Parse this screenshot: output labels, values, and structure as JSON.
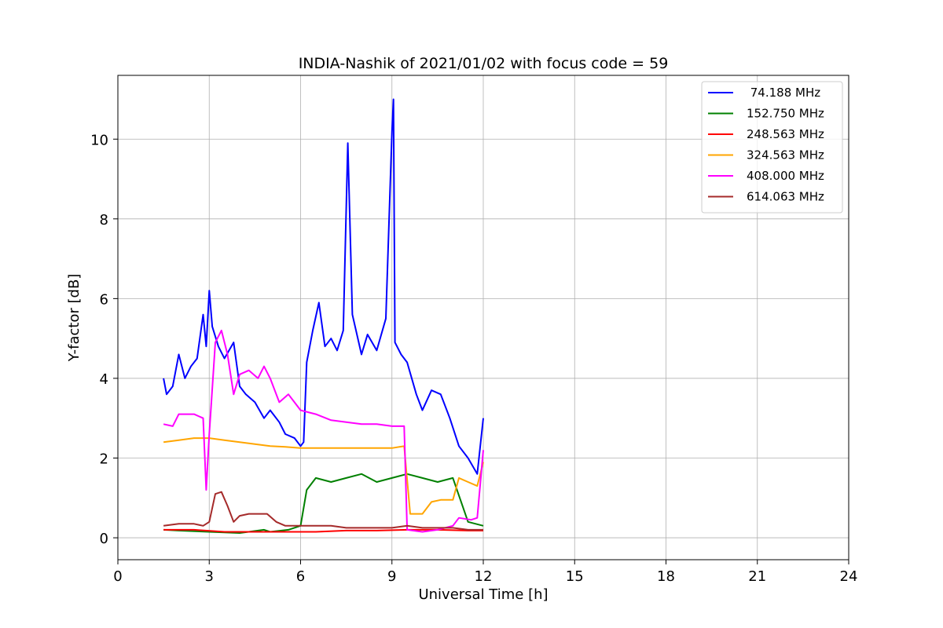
{
  "chart_data": {
    "type": "line",
    "title": "INDIA-Nashik of 2021/01/02 with focus code = 59",
    "xlabel": "Universal Time [h]",
    "ylabel": "Y-factor [dB]",
    "xlim": [
      0,
      24
    ],
    "ylim": [
      -0.55,
      11.6
    ],
    "x_ticks": [
      0,
      3,
      6,
      9,
      12,
      15,
      18,
      21,
      24
    ],
    "y_ticks": [
      0,
      2,
      4,
      6,
      8,
      10
    ],
    "grid": true,
    "legend_position": "top-right",
    "series": [
      {
        "name": " 74.188 MHz",
        "color": "#0000ff",
        "x": [
          1.5,
          1.6,
          1.8,
          2.0,
          2.2,
          2.4,
          2.6,
          2.8,
          2.9,
          3.0,
          3.1,
          3.3,
          3.5,
          3.8,
          4.0,
          4.2,
          4.5,
          4.8,
          5.0,
          5.3,
          5.5,
          5.8,
          6.0,
          6.1,
          6.2,
          6.4,
          6.6,
          6.8,
          7.0,
          7.2,
          7.4,
          7.55,
          7.7,
          8.0,
          8.2,
          8.5,
          8.8,
          9.0,
          9.05,
          9.1,
          9.3,
          9.5,
          9.8,
          10.0,
          10.3,
          10.6,
          10.9,
          11.2,
          11.5,
          11.8,
          12.0
        ],
        "y": [
          4.0,
          3.6,
          3.8,
          4.6,
          4.0,
          4.3,
          4.5,
          5.6,
          4.8,
          6.2,
          5.3,
          4.8,
          4.5,
          4.9,
          3.8,
          3.6,
          3.4,
          3.0,
          3.2,
          2.9,
          2.6,
          2.5,
          2.3,
          2.4,
          4.4,
          5.2,
          5.9,
          4.8,
          5.0,
          4.7,
          5.2,
          9.9,
          5.6,
          4.6,
          5.1,
          4.7,
          5.5,
          10.2,
          11.0,
          4.9,
          4.6,
          4.4,
          3.6,
          3.2,
          3.7,
          3.6,
          3.0,
          2.3,
          2.0,
          1.6,
          3.0
        ]
      },
      {
        "name": "152.750 MHz",
        "color": "#008000",
        "x": [
          1.5,
          2.0,
          3.0,
          4.0,
          4.8,
          5.0,
          5.6,
          6.0,
          6.2,
          6.5,
          7.0,
          7.5,
          8.0,
          8.5,
          9.0,
          9.5,
          10.0,
          10.5,
          11.0,
          11.5,
          12.0
        ],
        "y": [
          0.2,
          0.18,
          0.15,
          0.12,
          0.2,
          0.15,
          0.2,
          0.3,
          1.2,
          1.5,
          1.4,
          1.5,
          1.6,
          1.4,
          1.5,
          1.6,
          1.5,
          1.4,
          1.5,
          0.4,
          0.3
        ]
      },
      {
        "name": "248.563 MHz",
        "color": "#ff0000",
        "x": [
          1.5,
          2.5,
          3.5,
          4.5,
          5.5,
          6.5,
          7.5,
          8.5,
          9.5,
          10.5,
          11.5,
          12.0
        ],
        "y": [
          0.2,
          0.2,
          0.15,
          0.15,
          0.15,
          0.15,
          0.18,
          0.18,
          0.2,
          0.2,
          0.18,
          0.18
        ]
      },
      {
        "name": "324.563 MHz",
        "color": "#ffa500",
        "x": [
          1.5,
          2.0,
          2.5,
          3.0,
          3.5,
          4.0,
          4.5,
          5.0,
          5.5,
          6.0,
          6.5,
          7.0,
          7.5,
          8.0,
          8.5,
          9.0,
          9.4,
          9.6,
          10.0,
          10.3,
          10.6,
          11.0,
          11.2,
          11.5,
          11.8,
          12.0
        ],
        "y": [
          2.4,
          2.45,
          2.5,
          2.5,
          2.45,
          2.4,
          2.35,
          2.3,
          2.28,
          2.25,
          2.25,
          2.25,
          2.25,
          2.25,
          2.25,
          2.25,
          2.3,
          0.6,
          0.6,
          0.9,
          0.95,
          0.95,
          1.5,
          1.4,
          1.3,
          1.9
        ]
      },
      {
        "name": "408.000 MHz",
        "color": "#ff00ff",
        "x": [
          1.5,
          1.8,
          2.0,
          2.5,
          2.8,
          2.9,
          3.0,
          3.2,
          3.4,
          3.6,
          3.8,
          4.0,
          4.3,
          4.6,
          4.8,
          5.0,
          5.3,
          5.6,
          6.0,
          6.5,
          7.0,
          7.5,
          8.0,
          8.5,
          9.0,
          9.4,
          9.5,
          10.0,
          10.5,
          11.0,
          11.2,
          11.6,
          11.8,
          12.0
        ],
        "y": [
          2.85,
          2.8,
          3.1,
          3.1,
          3.0,
          1.2,
          2.6,
          4.9,
          5.2,
          4.6,
          3.6,
          4.1,
          4.2,
          4.0,
          4.3,
          4.0,
          3.4,
          3.6,
          3.2,
          3.1,
          2.95,
          2.9,
          2.85,
          2.85,
          2.8,
          2.8,
          0.2,
          0.15,
          0.2,
          0.3,
          0.5,
          0.45,
          0.5,
          2.2
        ]
      },
      {
        "name": "614.063 MHz",
        "color": "#a52a2a",
        "x": [
          1.5,
          2.0,
          2.5,
          2.8,
          3.0,
          3.2,
          3.4,
          3.6,
          3.8,
          4.0,
          4.3,
          4.6,
          4.9,
          5.2,
          5.5,
          6.0,
          6.5,
          7.0,
          7.5,
          8.0,
          8.5,
          9.0,
          9.5,
          10.0,
          10.5,
          11.0,
          11.5,
          12.0
        ],
        "y": [
          0.3,
          0.35,
          0.35,
          0.3,
          0.4,
          1.1,
          1.15,
          0.8,
          0.4,
          0.55,
          0.6,
          0.6,
          0.6,
          0.4,
          0.3,
          0.3,
          0.3,
          0.3,
          0.25,
          0.25,
          0.25,
          0.25,
          0.3,
          0.25,
          0.25,
          0.25,
          0.2,
          0.2
        ]
      }
    ]
  }
}
